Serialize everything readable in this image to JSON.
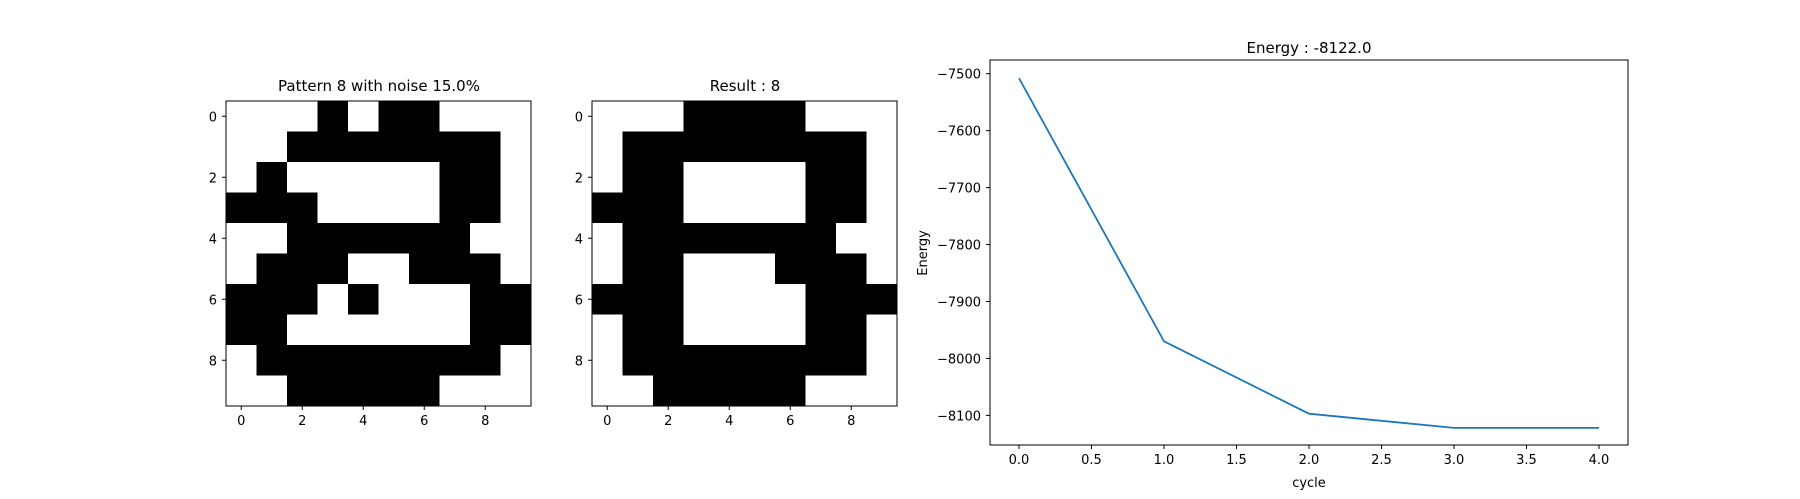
{
  "chart_data": [
    {
      "type": "heatmap",
      "title": "Pattern 8 with noise 15.0%",
      "x_ticks": [
        "0",
        "2",
        "4",
        "6",
        "8"
      ],
      "y_ticks": [
        "0",
        "2",
        "4",
        "6",
        "8"
      ],
      "colors": {
        "on": "#000000",
        "off": "#ffffff"
      },
      "grid": [
        [
          0,
          0,
          0,
          1,
          0,
          1,
          1,
          0,
          0,
          0
        ],
        [
          0,
          0,
          1,
          1,
          1,
          1,
          1,
          1,
          1,
          0
        ],
        [
          0,
          1,
          0,
          0,
          0,
          0,
          0,
          1,
          1,
          0
        ],
        [
          1,
          1,
          1,
          0,
          0,
          0,
          0,
          1,
          1,
          0
        ],
        [
          0,
          0,
          1,
          1,
          1,
          1,
          1,
          1,
          0,
          0
        ],
        [
          0,
          1,
          1,
          1,
          0,
          0,
          1,
          1,
          1,
          0
        ],
        [
          1,
          1,
          1,
          0,
          1,
          0,
          0,
          0,
          1,
          1
        ],
        [
          1,
          1,
          0,
          0,
          0,
          0,
          0,
          0,
          1,
          1
        ],
        [
          0,
          1,
          1,
          1,
          1,
          1,
          1,
          1,
          1,
          0
        ],
        [
          0,
          0,
          1,
          1,
          1,
          1,
          1,
          0,
          0,
          0
        ]
      ]
    },
    {
      "type": "heatmap",
      "title": "Result : 8",
      "x_ticks": [
        "0",
        "2",
        "4",
        "6",
        "8"
      ],
      "y_ticks": [
        "0",
        "2",
        "4",
        "6",
        "8"
      ],
      "colors": {
        "on": "#000000",
        "off": "#ffffff"
      },
      "grid": [
        [
          0,
          0,
          0,
          1,
          1,
          1,
          1,
          0,
          0,
          0
        ],
        [
          0,
          1,
          1,
          1,
          1,
          1,
          1,
          1,
          1,
          0
        ],
        [
          0,
          1,
          1,
          0,
          0,
          0,
          0,
          1,
          1,
          0
        ],
        [
          1,
          1,
          1,
          0,
          0,
          0,
          0,
          1,
          1,
          0
        ],
        [
          0,
          1,
          1,
          1,
          1,
          1,
          1,
          1,
          0,
          0
        ],
        [
          0,
          1,
          1,
          0,
          0,
          0,
          1,
          1,
          1,
          0
        ],
        [
          1,
          1,
          1,
          0,
          0,
          0,
          0,
          1,
          1,
          1
        ],
        [
          0,
          1,
          1,
          0,
          0,
          0,
          0,
          1,
          1,
          0
        ],
        [
          0,
          1,
          1,
          1,
          1,
          1,
          1,
          1,
          1,
          0
        ],
        [
          0,
          0,
          1,
          1,
          1,
          1,
          1,
          0,
          0,
          0
        ]
      ]
    },
    {
      "type": "line",
      "title": "Energy : -8122.0",
      "xlabel": "cycle",
      "ylabel": "Energy",
      "x": [
        0,
        1,
        2,
        3,
        4
      ],
      "y": [
        -7508,
        -7970,
        -8097,
        -8122,
        -8122
      ],
      "xlim": [
        -0.2,
        4.2
      ],
      "ylim": [
        -8152,
        -7476
      ],
      "x_ticks": [
        0.0,
        0.5,
        1.0,
        1.5,
        2.0,
        2.5,
        3.0,
        3.5,
        4.0
      ],
      "x_tick_labels": [
        "0.0",
        "0.5",
        "1.0",
        "1.5",
        "2.0",
        "2.5",
        "3.0",
        "3.5",
        "4.0"
      ],
      "y_ticks": [
        -7500,
        -7600,
        -7700,
        -7800,
        -7900,
        -8000,
        -8100
      ],
      "y_tick_labels": [
        "−7500",
        "−7600",
        "−7700",
        "−7800",
        "−7900",
        "−8000",
        "−8100"
      ],
      "color": "#1f77b4",
      "grid": false
    }
  ]
}
